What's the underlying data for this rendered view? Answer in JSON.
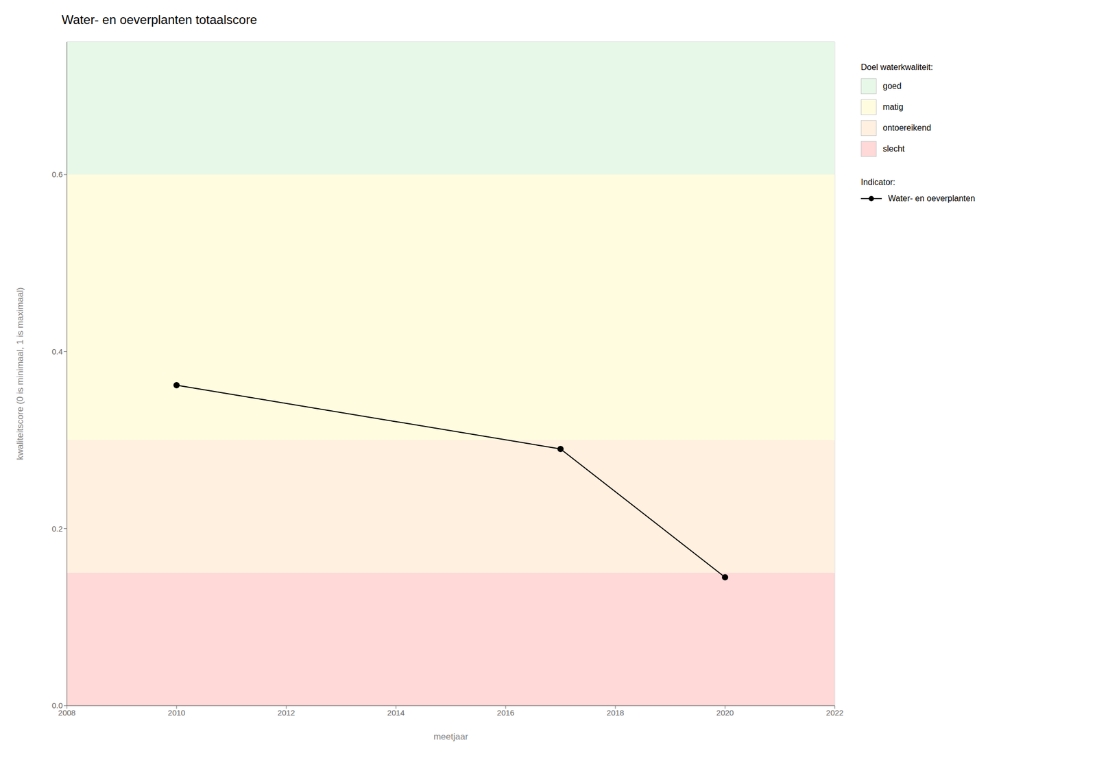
{
  "chart_data": {
    "type": "line",
    "title": "Water- en oeverplanten totaalscore",
    "xlabel": "meetjaar",
    "ylabel": "kwaliteitscore (0 is minimaal, 1 is maximaal)",
    "x": [
      2010,
      2017,
      2020
    ],
    "series": [
      {
        "name": "Water- en oeverplanten",
        "color": "#000000",
        "marker": "circle",
        "values": [
          0.362,
          0.29,
          0.145
        ]
      }
    ],
    "xlim": [
      2008,
      2022
    ],
    "ylim": [
      0,
      0.75
    ],
    "xticks": [
      2008,
      2010,
      2012,
      2014,
      2016,
      2018,
      2020,
      2022
    ],
    "yticks": [
      {
        "value": 0,
        "label": "0.0"
      },
      0.2,
      0.4,
      0.6
    ],
    "grid": true,
    "legend": "right",
    "bands": [
      {
        "ymin": 0.0,
        "ymax": 0.15,
        "color": "#FFD8D8",
        "label": "slecht"
      },
      {
        "ymin": 0.15,
        "ymax": 0.3,
        "color": "#FFF0E0",
        "label": "ontoereikend"
      },
      {
        "ymin": 0.3,
        "ymax": 0.6,
        "color": "#FFFCE0",
        "label": "matig"
      },
      {
        "ymin": 0.6,
        "ymax": 0.75,
        "color": "#E8F8E8",
        "label": "goed"
      }
    ],
    "band_legend_title": "Doel waterkwaliteit:",
    "series_legend_title": "Indicator:"
  }
}
